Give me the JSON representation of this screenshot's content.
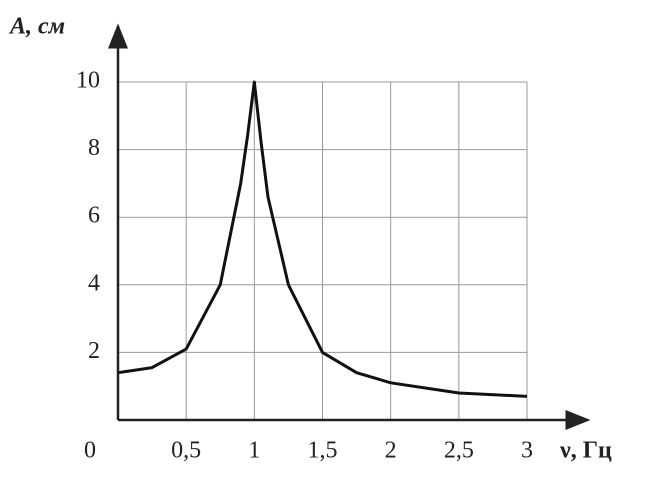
{
  "chart_data": {
    "type": "line",
    "y_label": "A, см",
    "x_label": "ν, Гц",
    "xlim": [
      0,
      3
    ],
    "ylim": [
      0,
      10
    ],
    "xticks": [
      0,
      {
        "value": 0.5,
        "label": "0,5"
      },
      1,
      {
        "value": 1.5,
        "label": "1,5"
      },
      2,
      {
        "value": 2.5,
        "label": "2,5"
      },
      3
    ],
    "yticks": [
      2,
      4,
      6,
      8,
      10
    ],
    "grid": true,
    "series": [
      {
        "color": "#111",
        "x": [
          0,
          0.25,
          0.5,
          0.75,
          0.9,
          0.95,
          1.0,
          1.05,
          1.1,
          1.25,
          1.5,
          1.75,
          2,
          2.5,
          3
        ],
        "values": [
          1.4,
          1.55,
          2.1,
          4,
          7,
          8.4,
          10,
          8.2,
          6.6,
          4,
          2,
          1.4,
          1.1,
          0.8,
          0.7
        ]
      }
    ]
  }
}
